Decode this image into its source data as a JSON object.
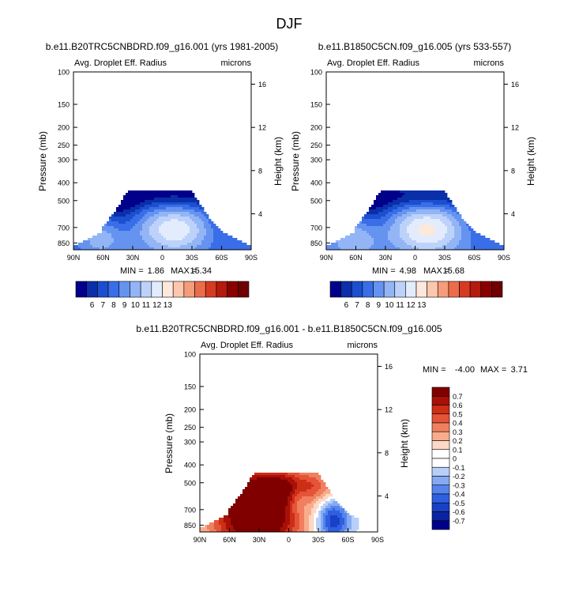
{
  "figure_title": "DJF",
  "chart_data": [
    {
      "type": "heatmap",
      "title": "b.e11.B20TRC5CNBDRD.f09_g16.001 (yrs 1981-2005)",
      "left_label": "Avg. Droplet Eff. Radius",
      "right_label": "microns",
      "ylabel": "Pressure (mb)",
      "ylabel_right": "Height (km)",
      "x_ticks": [
        "90N",
        "60N",
        "30N",
        "0",
        "30S",
        "60S",
        "90S"
      ],
      "x_values": [
        90,
        60,
        30,
        0,
        -30,
        -60,
        -90
      ],
      "y_ticks": [
        "100",
        "150",
        "200",
        "250",
        "300",
        "400",
        "500",
        "700",
        "850"
      ],
      "y_values": [
        100,
        150,
        200,
        250,
        300,
        400,
        500,
        700,
        850
      ],
      "ylim": [
        100,
        925
      ],
      "height_ticks": [
        "16",
        "12",
        "8",
        "4"
      ],
      "height_values": [
        16,
        12,
        8,
        4
      ],
      "stats": {
        "min_label": "MIN =",
        "min": "1.86",
        "max_label": "MAX =",
        "max": "15.34"
      },
      "colorbar": {
        "orientation": "horizontal",
        "labels": [
          "6",
          "7",
          "8",
          "9",
          "10",
          "11",
          "12",
          "13"
        ],
        "levels": [
          6,
          7,
          8,
          9,
          10,
          11,
          12,
          13
        ]
      },
      "field": "radius"
    },
    {
      "type": "heatmap",
      "title": "b.e11.B1850C5CN.f09_g16.005 (yrs 533-557)",
      "left_label": "Avg. Droplet Eff. Radius",
      "right_label": "microns",
      "ylabel": "Pressure (mb)",
      "ylabel_right": "Height (km)",
      "x_ticks": [
        "90N",
        "60N",
        "30N",
        "0",
        "30S",
        "60S",
        "90S"
      ],
      "x_values": [
        90,
        60,
        30,
        0,
        -30,
        -60,
        -90
      ],
      "y_ticks": [
        "100",
        "150",
        "200",
        "250",
        "300",
        "400",
        "500",
        "700",
        "850"
      ],
      "y_values": [
        100,
        150,
        200,
        250,
        300,
        400,
        500,
        700,
        850
      ],
      "ylim": [
        100,
        925
      ],
      "height_ticks": [
        "16",
        "12",
        "8",
        "4"
      ],
      "height_values": [
        16,
        12,
        8,
        4
      ],
      "stats": {
        "min_label": "MIN =",
        "min": "4.98",
        "max_label": "MAX =",
        "max": "15.68"
      },
      "colorbar": {
        "orientation": "horizontal",
        "labels": [
          "6",
          "7",
          "8",
          "9",
          "10",
          "11",
          "12",
          "13"
        ],
        "levels": [
          6,
          7,
          8,
          9,
          10,
          11,
          12,
          13
        ]
      },
      "field": "radius2"
    },
    {
      "type": "heatmap",
      "title": "b.e11.B20TRC5CNBDRD.f09_g16.001 - b.e11.B1850C5CN.f09_g16.005",
      "left_label": "Avg. Droplet Eff. Radius",
      "right_label": "microns",
      "ylabel": "Pressure (mb)",
      "ylabel_right": "Height (km)",
      "x_ticks": [
        "90N",
        "60N",
        "30N",
        "0",
        "30S",
        "60S",
        "90S"
      ],
      "x_values": [
        90,
        60,
        30,
        0,
        -30,
        -60,
        -90
      ],
      "y_ticks": [
        "100",
        "150",
        "200",
        "250",
        "300",
        "400",
        "500",
        "700",
        "850"
      ],
      "y_values": [
        100,
        150,
        200,
        250,
        300,
        400,
        500,
        700,
        850
      ],
      "ylim": [
        100,
        925
      ],
      "height_ticks": [
        "16",
        "12",
        "8",
        "4"
      ],
      "height_values": [
        16,
        12,
        8,
        4
      ],
      "stats": {
        "min_label": "MIN =",
        "min": "-4.00",
        "max_label": "MAX =",
        "max": "3.71"
      },
      "colorbar": {
        "orientation": "vertical",
        "labels": [
          "0.7",
          "0.6",
          "0.5",
          "0.4",
          "0.3",
          "0.2",
          "0.1",
          "0",
          "-0.1",
          "-0.2",
          "-0.3",
          "-0.4",
          "-0.5",
          "-0.6",
          "-0.7"
        ],
        "levels": [
          0.7,
          0.6,
          0.5,
          0.4,
          0.3,
          0.2,
          0.1,
          0,
          -0.1,
          -0.2,
          -0.3,
          -0.4,
          -0.5,
          -0.6,
          -0.7
        ]
      },
      "field": "diff"
    }
  ],
  "colors": {
    "ramp": [
      "#00008b",
      "#0a2fa8",
      "#1c4fcf",
      "#3a6ee8",
      "#6593f0",
      "#93b5f5",
      "#bdd2fa",
      "#e2ecfd",
      "#fde8dc",
      "#fbc7ad",
      "#f59c7b",
      "#eb6c4a",
      "#d63b22",
      "#b51a0e",
      "#8a0000",
      "#6e0000"
    ],
    "diverging": [
      "#00008b",
      "#0a24a0",
      "#1a40c4",
      "#2f5fe0",
      "#5585ec",
      "#85aaf3",
      "#b8cff9",
      "#ffffff",
      "#fcd8c6",
      "#f8ac8c",
      "#f07f5e",
      "#e45437",
      "#cd2e16",
      "#a81008",
      "#800000"
    ]
  }
}
